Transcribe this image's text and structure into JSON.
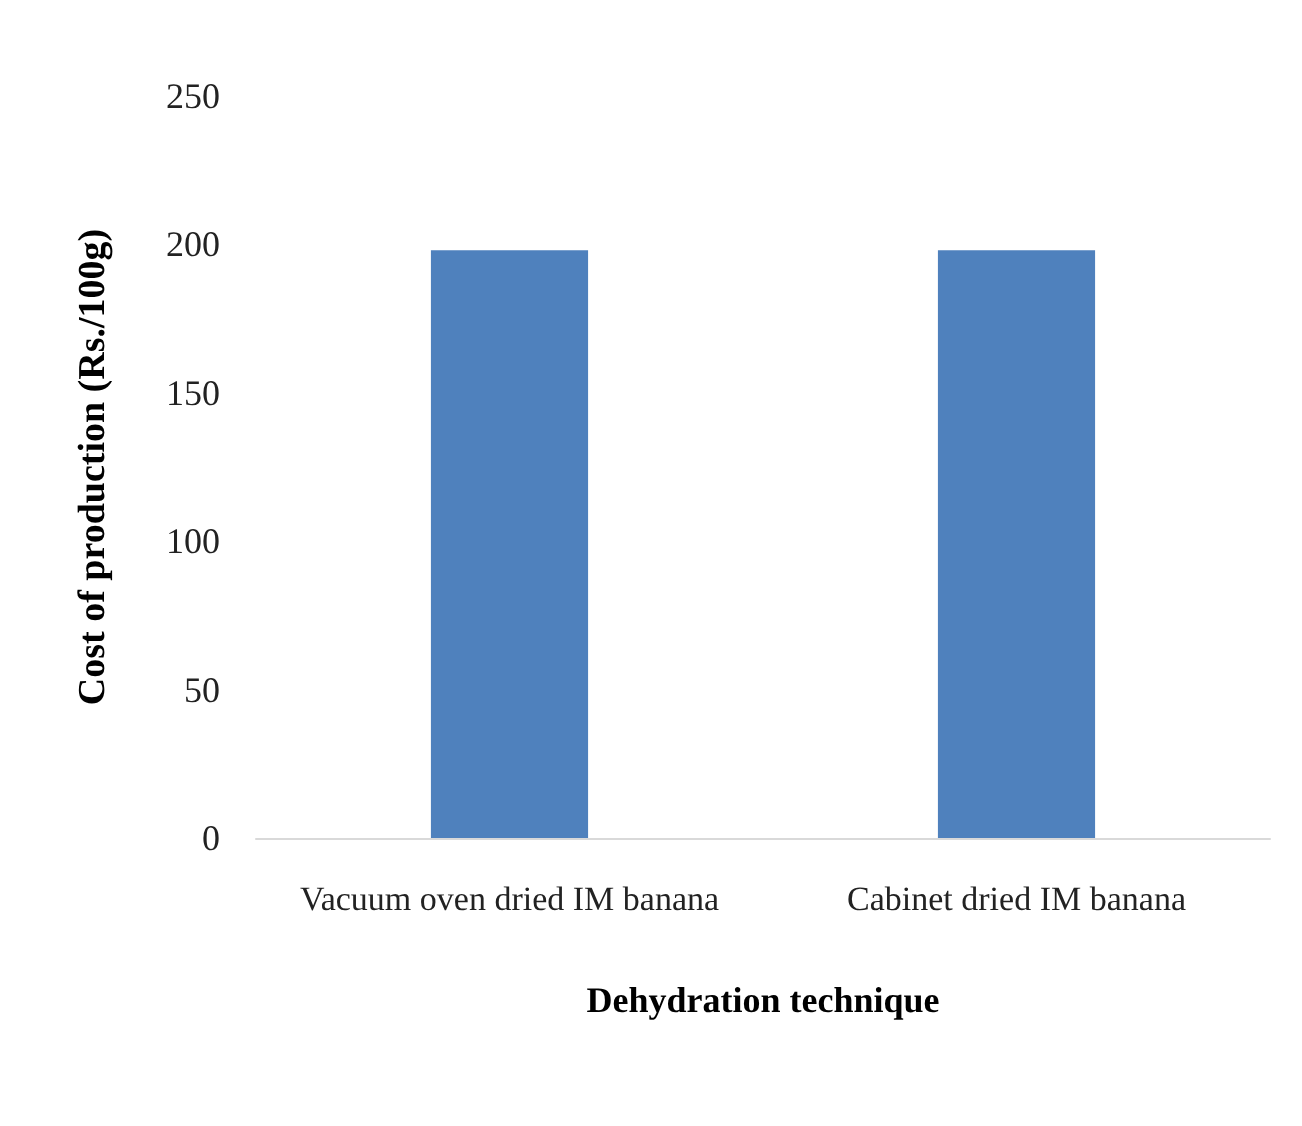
{
  "chart_data": {
    "type": "bar",
    "xlabel": "Dehydration technique",
    "ylabel": "Cost of production (Rs./100g)",
    "categories": [
      "Vacuum oven dried IM banana",
      "Cabinet dried IM banana"
    ],
    "values": [
      198,
      198
    ],
    "color": "#4f81bd",
    "ylim": [
      0,
      250
    ],
    "yticks": [
      0,
      50,
      100,
      150,
      200,
      250
    ],
    "grid": false
  }
}
